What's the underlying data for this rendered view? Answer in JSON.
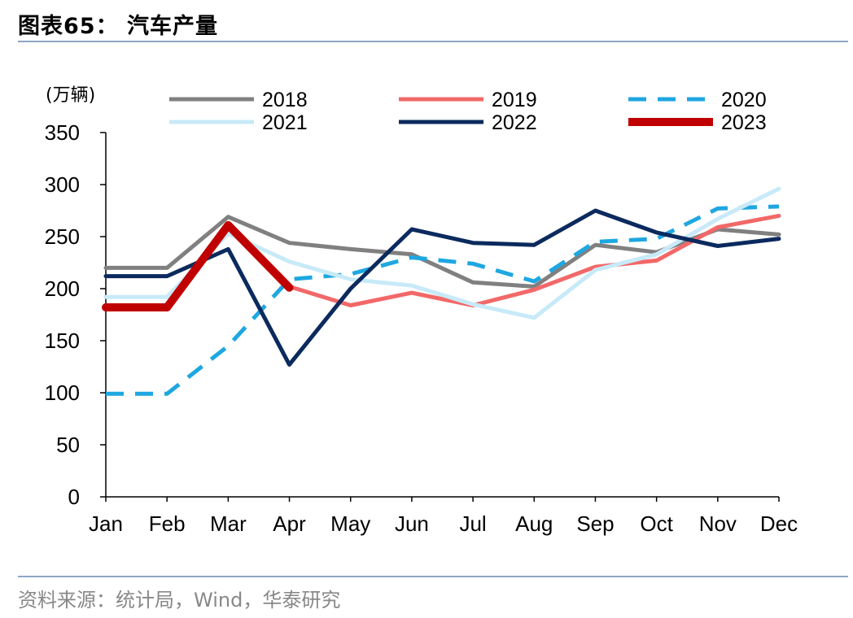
{
  "header": {
    "title": "图表65：  汽车产量"
  },
  "footer": {
    "source": "资料来源：统计局，Wind，华泰研究"
  },
  "chart_data": {
    "type": "line",
    "title": "汽车产量",
    "unit": "(万辆)",
    "categories": [
      "Jan",
      "Feb",
      "Mar",
      "Apr",
      "May",
      "Jun",
      "Jul",
      "Aug",
      "Sep",
      "Oct",
      "Nov",
      "Dec"
    ],
    "yticks": [
      0,
      50,
      100,
      150,
      200,
      250,
      300,
      350
    ],
    "ylim": [
      0,
      350
    ],
    "grid": false,
    "legend_position": "top",
    "series": [
      {
        "name": "2018",
        "color": "#808080",
        "style": "solid",
        "width": "normal",
        "values": [
          220,
          220,
          269,
          244,
          238,
          233,
          206,
          202,
          242,
          235,
          257,
          252
        ]
      },
      {
        "name": "2019",
        "color": "#f26868",
        "style": "solid",
        "width": "normal",
        "values": [
          null,
          null,
          259,
          202,
          184,
          196,
          184,
          199,
          221,
          227,
          259,
          270
        ]
      },
      {
        "name": "2020",
        "color": "#1ea7e1",
        "style": "dashed",
        "width": "normal",
        "values": [
          99,
          99,
          145,
          209,
          214,
          230,
          224,
          207,
          245,
          248,
          277,
          279
        ]
      },
      {
        "name": "2021",
        "color": "#c8eaf8",
        "style": "solid",
        "width": "normal",
        "values": [
          192,
          192,
          253,
          226,
          209,
          203,
          185,
          172,
          218,
          233,
          267,
          296
        ]
      },
      {
        "name": "2022",
        "color": "#0b2a5e",
        "style": "solid",
        "width": "normal",
        "values": [
          212,
          212,
          238,
          127,
          200,
          257,
          244,
          242,
          275,
          254,
          241,
          248
        ]
      },
      {
        "name": "2023",
        "color": "#c00000",
        "style": "solid",
        "width": "bold",
        "values": [
          182,
          182,
          261,
          201,
          null,
          null,
          null,
          null,
          null,
          null,
          null,
          null
        ]
      }
    ]
  }
}
